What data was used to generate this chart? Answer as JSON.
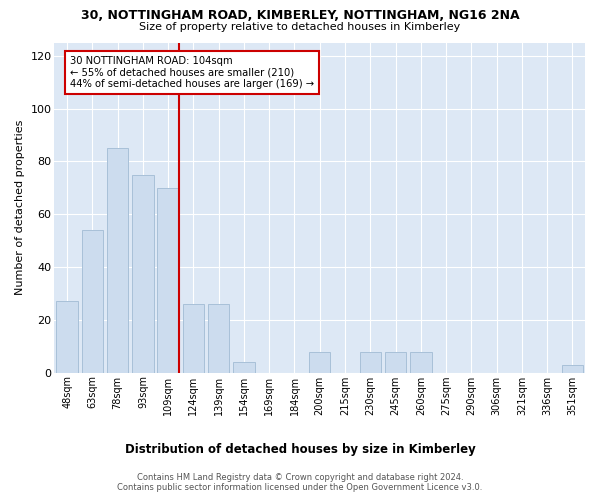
{
  "title": "30, NOTTINGHAM ROAD, KIMBERLEY, NOTTINGHAM, NG16 2NA",
  "subtitle": "Size of property relative to detached houses in Kimberley",
  "xlabel": "Distribution of detached houses by size in Kimberley",
  "ylabel": "Number of detached properties",
  "categories": [
    "48sqm",
    "63sqm",
    "78sqm",
    "93sqm",
    "109sqm",
    "124sqm",
    "139sqm",
    "154sqm",
    "169sqm",
    "184sqm",
    "200sqm",
    "215sqm",
    "230sqm",
    "245sqm",
    "260sqm",
    "275sqm",
    "290sqm",
    "306sqm",
    "321sqm",
    "336sqm",
    "351sqm"
  ],
  "values": [
    27,
    54,
    85,
    75,
    70,
    26,
    26,
    4,
    0,
    0,
    8,
    0,
    8,
    8,
    8,
    0,
    0,
    0,
    0,
    0,
    3
  ],
  "bar_color": "#ccdcee",
  "bar_edge_color": "#a8c0d8",
  "marker_line_index": 4,
  "marker_label": "30 NOTTINGHAM ROAD: 104sqm",
  "annotation_line1": "← 55% of detached houses are smaller (210)",
  "annotation_line2": "44% of semi-detached houses are larger (169) →",
  "annotation_box_color": "#ffffff",
  "annotation_box_edge": "#cc0000",
  "marker_line_color": "#cc0000",
  "ylim": [
    0,
    125
  ],
  "yticks": [
    0,
    20,
    40,
    60,
    80,
    100,
    120
  ],
  "background_color": "#dde8f5",
  "grid_color": "#ffffff",
  "footer_line1": "Contains HM Land Registry data © Crown copyright and database right 2024.",
  "footer_line2": "Contains public sector information licensed under the Open Government Licence v3.0."
}
